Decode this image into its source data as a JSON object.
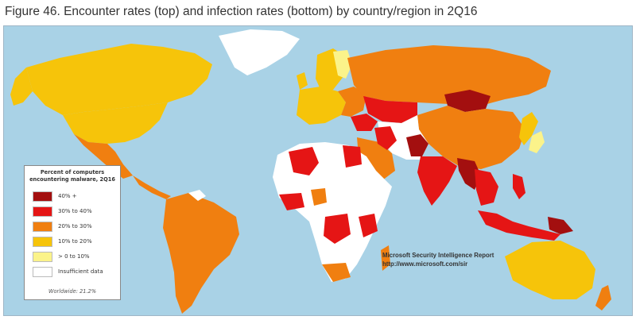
{
  "caption": "Figure 46. Encounter rates (top) and infection rates (bottom) by country/region in 2Q16",
  "colors": {
    "ocean": "#a9d2e6",
    "rate_40_plus": "#a30f0f",
    "rate_30_40": "#e51515",
    "rate_20_30": "#f07f10",
    "rate_10_20": "#f6c40a",
    "rate_0_10": "#fbf38a",
    "insufficient": "#ffffff"
  },
  "legend": {
    "title": "Percent of computers encountering malware, 2Q16",
    "items": [
      {
        "label": "40% +",
        "color": "#a30f0f"
      },
      {
        "label": "30% to 40%",
        "color": "#e51515"
      },
      {
        "label": "20% to 30%",
        "color": "#f07f10"
      },
      {
        "label": "10% to 20%",
        "color": "#f6c40a"
      },
      {
        "label": "> 0 to 10%",
        "color": "#fbf38a"
      },
      {
        "label": "Insufficient data",
        "color": "#ffffff"
      }
    ],
    "note": "Worldwide: 21.2%"
  },
  "credit": {
    "line1": "Microsoft Security Intelligence Report",
    "line2": "http://www.microsoft.com/sir"
  }
}
